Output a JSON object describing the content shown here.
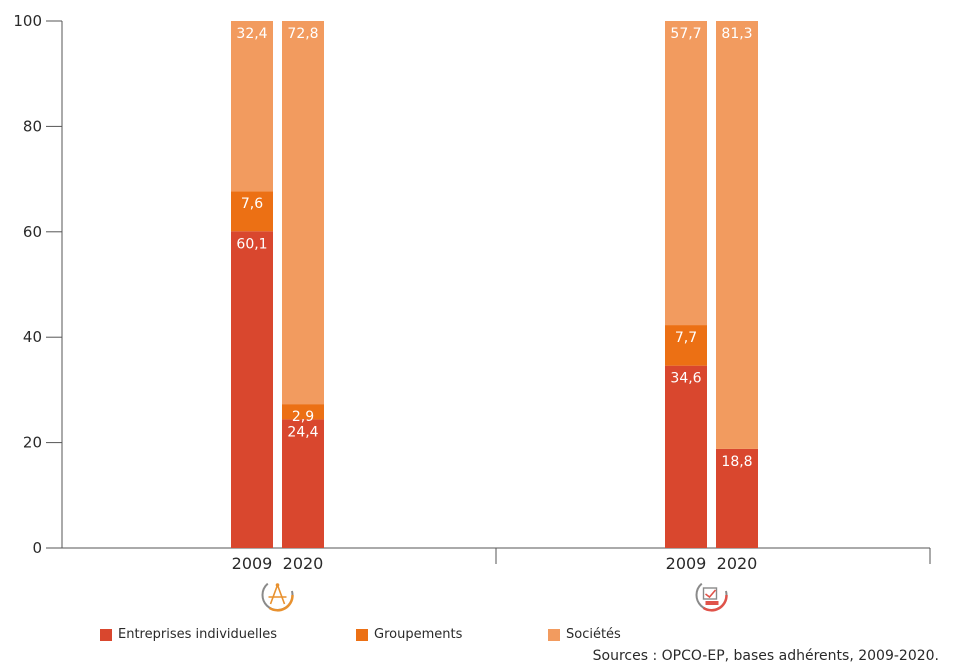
{
  "chart_data": {
    "type": "bar",
    "stacked": true,
    "ylim": [
      0,
      100
    ],
    "yticks": [
      0,
      20,
      40,
      60,
      80,
      100
    ],
    "groups": [
      {
        "icon": "architecture-compass-icon",
        "icon_color": "#e8912f",
        "bars": [
          {
            "label": "2009",
            "values": [
              60.1,
              7.6,
              32.4
            ],
            "value_labels": [
              "60,1",
              "7,6",
              "32,4"
            ]
          },
          {
            "label": "2020",
            "values": [
              24.4,
              2.9,
              72.8
            ],
            "value_labels": [
              "24,4",
              "2,9",
              "72,8"
            ]
          }
        ]
      },
      {
        "icon": "technical-drawing-icon",
        "icon_color": "#e0534a",
        "bars": [
          {
            "label": "2009",
            "values": [
              34.6,
              7.7,
              57.7
            ],
            "value_labels": [
              "34,6",
              "7,7",
              "57,7"
            ]
          },
          {
            "label": "2020",
            "values": [
              18.8,
              0,
              81.3
            ],
            "value_labels": [
              "18,8",
              "",
              "81,3"
            ]
          }
        ]
      }
    ],
    "series": [
      {
        "name": "Entreprises individuelles",
        "color": "#d9472e"
      },
      {
        "name": "Groupements",
        "color": "#ec7014"
      },
      {
        "name": "Sociétés",
        "color": "#f29b5f"
      }
    ],
    "legend_position": "bottom",
    "grid": false
  },
  "source": "Sources : OPCO-EP, bases adhérents, 2009-2020."
}
